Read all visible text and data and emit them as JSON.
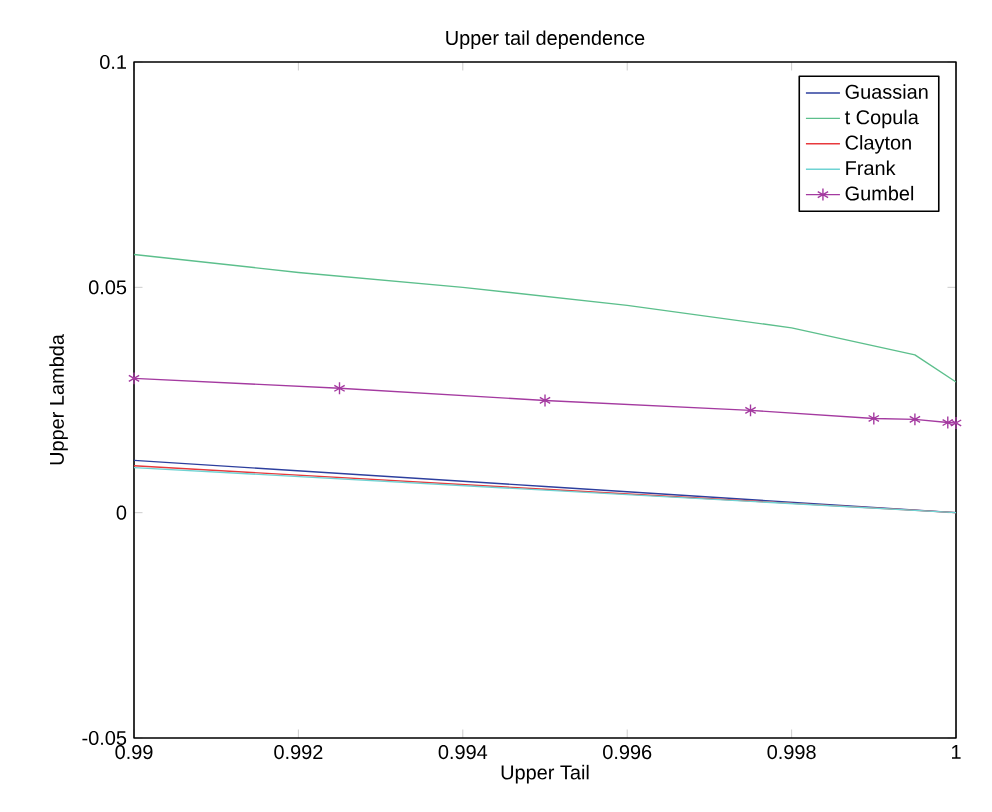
{
  "chart_data": {
    "type": "line",
    "title": "Upper tail dependence",
    "xlabel": "Upper Tail",
    "ylabel": "Upper Lambda",
    "xlim": [
      0.99,
      1
    ],
    "xticks": [
      0.99,
      0.992,
      0.994,
      0.996,
      0.998,
      1
    ],
    "ylim": [
      -0.05,
      0.1
    ],
    "yticks": [
      -0.05,
      0,
      0.05,
      0.1
    ],
    "legend": "top right",
    "grid": false,
    "line_style": "solid",
    "series": [
      {
        "name": "Guassian",
        "color": "#2d3f9e",
        "marker": "none",
        "x": [
          0.99,
          0.995,
          1
        ],
        "values": [
          0.0116,
          0.0058,
          0
        ]
      },
      {
        "name": "t Copula",
        "color": "#5cbf8c",
        "marker": "none",
        "x": [
          0.99,
          0.992,
          0.994,
          0.996,
          0.998,
          0.999,
          0.9995,
          1
        ],
        "values": [
          0.0573,
          0.0533,
          0.05,
          0.046,
          0.041,
          0.037,
          0.035,
          0.029
        ]
      },
      {
        "name": "Clayton",
        "color": "#e8393c",
        "marker": "none",
        "x": [
          0.99,
          0.995,
          1
        ],
        "values": [
          0.0104,
          0.0052,
          0
        ]
      },
      {
        "name": "Frank",
        "color": "#6fd3d3",
        "marker": "none",
        "x": [
          0.99,
          0.995,
          1
        ],
        "values": [
          0.01,
          0.005,
          0
        ]
      },
      {
        "name": "Gumbel",
        "color": "#a43aa0",
        "marker": "cross",
        "x": [
          0.99,
          0.9925,
          0.995,
          0.9975,
          0.999,
          0.9995,
          0.9999,
          1
        ],
        "values": [
          0.0298,
          0.0276,
          0.0249,
          0.0227,
          0.0209,
          0.0207,
          0.02,
          0.0199
        ]
      }
    ]
  }
}
